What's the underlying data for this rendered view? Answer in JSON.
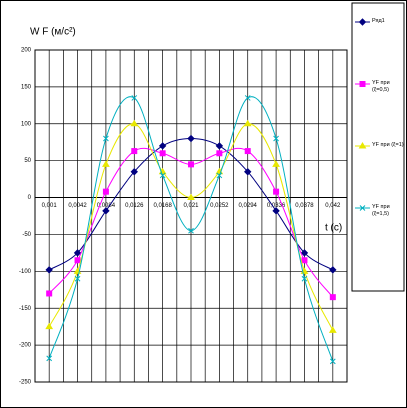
{
  "chart_data": {
    "type": "line",
    "ylabel": "W F (м/с²)",
    "xlabel": "t (c)",
    "categories": [
      "0,001",
      "0,0042",
      "0,0084",
      "0,0126",
      "0,0168",
      "0,021",
      "0,0252",
      "0,0294",
      "0,0336",
      "0,0378",
      "0,042"
    ],
    "series": [
      {
        "name": "Ряд1",
        "color": "#000080",
        "marker": "diamond",
        "values": [
          -98,
          -75,
          -18,
          35,
          70,
          80,
          70,
          35,
          -18,
          -75,
          -98
        ]
      },
      {
        "name": "YF при (ξ=0,5)",
        "color": "#ff00ff",
        "marker": "square",
        "values": [
          -130,
          -85,
          8,
          63,
          60,
          45,
          60,
          63,
          8,
          -85,
          -135
        ]
      },
      {
        "name": "YF при (ξ=1)",
        "color": "#e8e800",
        "marker": "triangle",
        "values": [
          -175,
          -100,
          45,
          100,
          35,
          0,
          35,
          100,
          45,
          -100,
          -180
        ]
      },
      {
        "name": "YF при (ξ=1,5)",
        "color": "#00b0c0",
        "marker": "x",
        "values": [
          -218,
          -110,
          80,
          135,
          30,
          -45,
          30,
          135,
          80,
          -110,
          -222
        ]
      }
    ],
    "ylim": [
      -250,
      200
    ],
    "yticks": [
      -250,
      -200,
      -150,
      -100,
      -50,
      0,
      50,
      100,
      150,
      200
    ],
    "grid": true
  }
}
